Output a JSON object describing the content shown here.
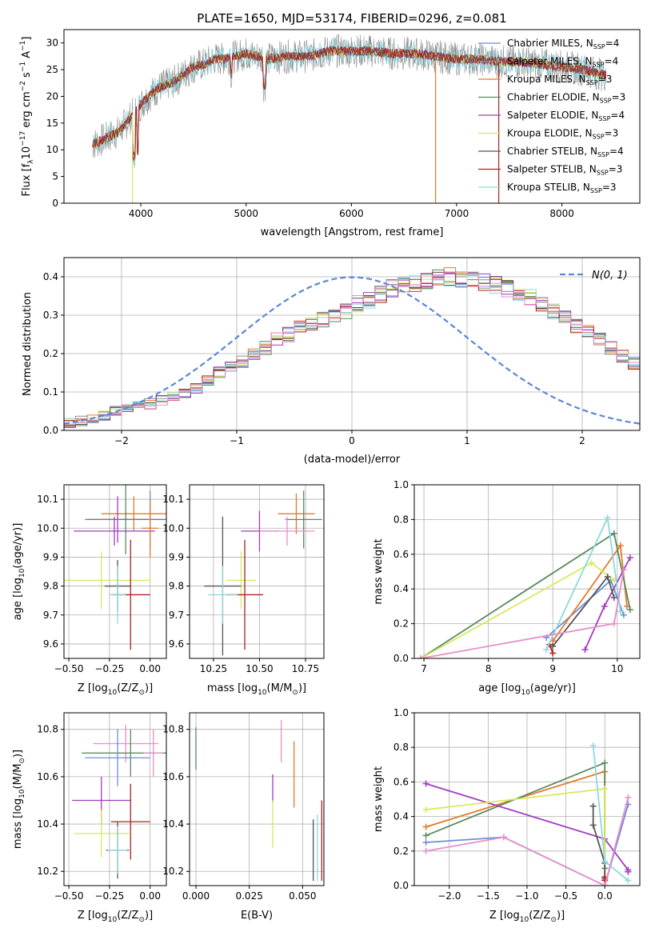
{
  "figure": {
    "title": "PLATE=1650, MJD=53174, FIBERID=0296, z=0.081"
  },
  "legend_entries": [
    {
      "name": "Chabrier MILES, N",
      "sub": "SSP",
      "tail": "=4",
      "color": "#6b8fd8"
    },
    {
      "name": "Salpeter MILES, N",
      "sub": "SSP",
      "tail": "=4",
      "color": "#8c8c8c"
    },
    {
      "name": "Kroupa MILES, N",
      "sub": "SSP",
      "tail": "=3",
      "color": "#e37a2c"
    },
    {
      "name": "Chabrier ELODIE, N",
      "sub": "SSP",
      "tail": "=3",
      "color": "#5a8a5e"
    },
    {
      "name": "Salpeter ELODIE, N",
      "sub": "SSP",
      "tail": "=4",
      "color": "#a03cc0"
    },
    {
      "name": "Kroupa ELODIE, N",
      "sub": "SSP",
      "tail": "=3",
      "color": "#d8e860"
    },
    {
      "name": "Chabrier STELIB, N",
      "sub": "SSP",
      "tail": "=4",
      "color": "#555555"
    },
    {
      "name": "Salpeter STELIB, N",
      "sub": "SSP",
      "tail": "=3",
      "color": "#b0201e"
    },
    {
      "name": "Kroupa STELIB, N",
      "sub": "SSP",
      "tail": "=3",
      "color": "#8fd8e0"
    }
  ],
  "chart_data": [
    {
      "id": "spectrum",
      "type": "line",
      "title": "PLATE=1650, MJD=53174, FIBERID=0296, z=0.081",
      "xlabel": "wavelength [Angstrom, rest frame]",
      "ylabel_main": "Flux [f",
      "ylabel_sub": "λ",
      "ylabel_rest": "10",
      "ylabel_exp": "−17",
      "ylabel_units": " erg cm",
      "ylabel_units_exp1": "−2",
      "ylabel_units2": " s",
      "ylabel_units_exp2": "−1",
      "ylabel_units3": " A",
      "ylabel_units_exp3": "−1",
      "ylabel_close": "]",
      "xlim": [
        3270,
        8740
      ],
      "ylim": [
        0,
        32.5
      ],
      "xticks": [
        4000,
        5000,
        6000,
        7000,
        8000
      ],
      "yticks": [
        0,
        5,
        10,
        15,
        20,
        25,
        30
      ],
      "grid": false,
      "legend_position": "right",
      "continuum": [
        [
          3540,
          11
        ],
        [
          3600,
          11.5
        ],
        [
          3700,
          12.5
        ],
        [
          3800,
          13.5
        ],
        [
          3900,
          16
        ],
        [
          4000,
          18.5
        ],
        [
          4100,
          20.5
        ],
        [
          4200,
          22
        ],
        [
          4300,
          22.5
        ],
        [
          4400,
          24
        ],
        [
          4500,
          25.5
        ],
        [
          4600,
          26
        ],
        [
          4700,
          27
        ],
        [
          4800,
          27
        ],
        [
          4900,
          27.5
        ],
        [
          5000,
          28
        ],
        [
          5200,
          27
        ],
        [
          5400,
          27.5
        ],
        [
          5600,
          27.5
        ],
        [
          5800,
          28.5
        ],
        [
          6000,
          28.5
        ],
        [
          6200,
          28.5
        ],
        [
          6400,
          28
        ],
        [
          6600,
          28
        ],
        [
          6800,
          27.5
        ],
        [
          7000,
          27
        ],
        [
          7200,
          27
        ],
        [
          7400,
          26.5
        ],
        [
          7600,
          26.5
        ],
        [
          7800,
          26
        ],
        [
          8000,
          25.5
        ],
        [
          8200,
          25
        ],
        [
          8400,
          24
        ]
      ],
      "drops": [
        {
          "x": 3920,
          "to": 0,
          "color": "#d8e860"
        },
        {
          "x": 6800,
          "to": 0,
          "color": "#e37a2c"
        },
        {
          "x": 7400,
          "to": 0,
          "color": "#b0201e"
        }
      ]
    },
    {
      "id": "residuals",
      "type": "histogram",
      "xlabel": "(data-model)/error",
      "ylabel": "Normed distribution",
      "xlim": [
        -2.5,
        2.5
      ],
      "ylim": [
        0,
        0.45
      ],
      "xticks": [
        -2,
        -1,
        0,
        1,
        2
      ],
      "yticks": [
        0.0,
        0.1,
        0.2,
        0.3,
        0.4
      ],
      "grid": true,
      "legend_position": "top-right",
      "reference_curve": "N(0, 1)",
      "bin_width": 0.1,
      "bin_start": -2.5,
      "values": [
        0.02,
        0.025,
        0.03,
        0.04,
        0.05,
        0.06,
        0.065,
        0.07,
        0.08,
        0.09,
        0.1,
        0.11,
        0.13,
        0.15,
        0.165,
        0.18,
        0.2,
        0.215,
        0.24,
        0.25,
        0.27,
        0.28,
        0.29,
        0.3,
        0.31,
        0.33,
        0.34,
        0.355,
        0.37,
        0.38,
        0.385,
        0.39,
        0.395,
        0.4,
        0.395,
        0.39,
        0.385,
        0.38,
        0.37,
        0.36,
        0.345,
        0.33,
        0.31,
        0.29,
        0.27,
        0.255,
        0.235,
        0.215,
        0.195,
        0.175,
        0.16,
        0.14,
        0.125,
        0.11,
        0.095,
        0.085,
        0.075,
        0.065,
        0.055,
        0.05,
        0.04,
        0.035,
        0.03,
        0.028,
        0.025,
        0.022,
        0.02,
        0.02,
        0.02,
        0.02
      ],
      "jitter": 0.03
    },
    {
      "id": "age_vs_Z",
      "type": "errorbar",
      "xlabel": "Z [log",
      "xlabel_sub": "10",
      "xlabel_rest": "(Z/Z",
      "xlabel_sun": "⊙",
      "xlabel_close": ")]",
      "ylabel": "age  [log",
      "ylabel_sub": "10",
      "ylabel_rest": "(age/yr)]",
      "xlim": [
        -0.53,
        0.1
      ],
      "ylim": [
        9.55,
        10.15
      ],
      "xticks": [
        -0.5,
        -0.25,
        0.0
      ],
      "yticks": [
        9.6,
        9.7,
        9.8,
        9.9,
        10.0,
        10.1
      ],
      "grid": true,
      "points": [
        {
          "x": -0.1,
          "xerr": 0.2,
          "y": 10.05,
          "yerr": 0.06,
          "color": "#e37a2c"
        },
        {
          "x": -0.2,
          "xerr": 0.18,
          "y": 10.03,
          "yerr": 0.08,
          "color": "#a03cc0"
        },
        {
          "x": 0.0,
          "xerr": 0.08,
          "y": 10.03,
          "yerr": 0.1,
          "color": "#6b8fd8"
        },
        {
          "x": -0.15,
          "xerr": 0.25,
          "y": 10.03,
          "yerr": 0.12,
          "color": "#5a8a5e"
        },
        {
          "x": -0.22,
          "xerr": 0.25,
          "y": 9.99,
          "yerr": 0.05,
          "color": "#a03cc0"
        },
        {
          "x": 0.0,
          "xerr": 0.05,
          "y": 10.0,
          "yerr": 0.1,
          "color": "#e37a2c"
        },
        {
          "x": -0.3,
          "xerr": 0.3,
          "y": 9.82,
          "yerr": 0.1,
          "color": "#d8e860"
        },
        {
          "x": -0.2,
          "xerr": 0.08,
          "y": 9.8,
          "yerr": 0.09,
          "color": "#555555"
        },
        {
          "x": -0.12,
          "xerr": 0.12,
          "y": 9.77,
          "yerr": 0.19,
          "color": "#b0201e"
        },
        {
          "x": -0.2,
          "xerr": 0.05,
          "y": 9.77,
          "yerr": 0.1,
          "color": "#8fd8e0"
        }
      ]
    },
    {
      "id": "age_vs_mass",
      "type": "errorbar",
      "xlabel": "mass [log",
      "xlabel_sub": "10",
      "xlabel_rest": "(M/M",
      "xlabel_sun": "⊙",
      "xlabel_close": ")]",
      "xlim": [
        10.12,
        10.85
      ],
      "ylim": [
        9.55,
        10.15
      ],
      "xticks": [
        10.25,
        10.5,
        10.75
      ],
      "yticks": [
        9.6,
        9.7,
        9.8,
        9.9,
        10.0,
        10.1
      ],
      "grid": true,
      "points": [
        {
          "x": 10.7,
          "xerr": 0.1,
          "y": 10.05,
          "yerr": 0.07,
          "color": "#e37a2c"
        },
        {
          "x": 10.74,
          "xerr": 0.1,
          "y": 10.03,
          "yerr": 0.1,
          "color": "#5a8a5e"
        },
        {
          "x": 10.5,
          "xerr": 0.1,
          "y": 9.99,
          "yerr": 0.07,
          "color": "#a03cc0"
        },
        {
          "x": 10.65,
          "xerr": 0.15,
          "y": 9.99,
          "yerr": 0.05,
          "color": "#e88ec8"
        },
        {
          "x": 10.4,
          "xerr": 0.08,
          "y": 9.82,
          "yerr": 0.1,
          "color": "#d8e860"
        },
        {
          "x": 10.3,
          "xerr": 0.1,
          "y": 9.8,
          "yerr": 0.24,
          "color": "#555555"
        },
        {
          "x": 10.42,
          "xerr": 0.1,
          "y": 9.77,
          "yerr": 0.19,
          "color": "#b0201e"
        },
        {
          "x": 10.3,
          "xerr": 0.08,
          "y": 9.77,
          "yerr": 0.1,
          "color": "#8fd8e0"
        }
      ]
    },
    {
      "id": "weight_vs_age",
      "type": "line",
      "xlabel": "age  [log",
      "xlabel_sub": "10",
      "xlabel_rest": "(age/yr)]",
      "ylabel": "mass weight",
      "xlim": [
        6.85,
        10.35
      ],
      "ylim": [
        0,
        1
      ],
      "xticks": [
        7,
        8,
        9,
        10
      ],
      "yticks": [
        0.0,
        0.2,
        0.4,
        0.6,
        0.8,
        1.0
      ],
      "grid": true,
      "series": [
        {
          "color": "#6b8fd8",
          "x": [
            8.9,
            9.9,
            10.1
          ],
          "y": [
            0.12,
            0.45,
            0.25
          ]
        },
        {
          "color": "#e37a2c",
          "x": [
            9.0,
            10.05,
            10.15
          ],
          "y": [
            0.1,
            0.65,
            0.3
          ]
        },
        {
          "color": "#5a8a5e",
          "x": [
            6.95,
            9.95,
            10.2
          ],
          "y": [
            0.0,
            0.72,
            0.28
          ]
        },
        {
          "color": "#a03cc0",
          "x": [
            9.5,
            9.8,
            10.2
          ],
          "y": [
            0.05,
            0.3,
            0.58
          ]
        },
        {
          "color": "#d8e860",
          "x": [
            6.95,
            9.6,
            9.95
          ],
          "y": [
            0.0,
            0.55,
            0.45
          ]
        },
        {
          "color": "#555555",
          "x": [
            9.0,
            9.85,
            9.95
          ],
          "y": [
            0.07,
            0.47,
            0.35
          ]
        },
        {
          "color": "#b0201e",
          "x": [
            8.95,
            9.0
          ],
          "y": [
            0.08,
            0.03
          ]
        },
        {
          "color": "#8fd8e0",
          "x": [
            8.9,
            9.85,
            10.05
          ],
          "y": [
            0.05,
            0.81,
            0.27
          ]
        },
        {
          "color": "#e88ec8",
          "x": [
            6.95,
            9.95,
            10.1
          ],
          "y": [
            0.0,
            0.2,
            0.51
          ]
        }
      ]
    },
    {
      "id": "mass_vs_Z",
      "type": "errorbar",
      "xlabel": "Z [log",
      "xlabel_sub": "10",
      "xlabel_rest": "(Z/Z",
      "xlabel_sun": "⊙",
      "xlabel_close": ")]",
      "ylabel": "mass [log",
      "ylabel_sub": "10",
      "ylabel_rest": "(M/M",
      "ylabel_sun": "⊙",
      "ylabel_close": ")]",
      "xlim": [
        -0.53,
        0.1
      ],
      "ylim": [
        10.14,
        10.87
      ],
      "xticks": [
        -0.5,
        -0.25,
        0.0
      ],
      "yticks": [
        10.2,
        10.4,
        10.6,
        10.8
      ],
      "grid": true,
      "points": [
        {
          "x": -0.15,
          "xerr": 0.2,
          "y": 10.74,
          "yerr": 0.08,
          "color": "#e88ec8"
        },
        {
          "x": -0.12,
          "xerr": 0.3,
          "y": 10.7,
          "yerr": 0.1,
          "color": "#5a8a5e"
        },
        {
          "x": 0.02,
          "xerr": 0.06,
          "y": 10.7,
          "yerr": 0.1,
          "color": "#e88ec8"
        },
        {
          "x": -0.2,
          "xerr": 0.2,
          "y": 10.68,
          "yerr": 0.12,
          "color": "#6b8fd8"
        },
        {
          "x": -0.3,
          "xerr": 0.18,
          "y": 10.5,
          "yerr": 0.1,
          "color": "#a03cc0"
        },
        {
          "x": -0.12,
          "xerr": 0.12,
          "y": 10.41,
          "yerr": 0.16,
          "color": "#b0201e"
        },
        {
          "x": -0.3,
          "xerr": 0.17,
          "y": 10.36,
          "yerr": 0.1,
          "color": "#d8e860"
        },
        {
          "x": -0.2,
          "xerr": 0.07,
          "y": 10.29,
          "yerr": 0.12,
          "color": "#555555"
        },
        {
          "x": -0.2,
          "xerr": 0.06,
          "y": 10.29,
          "yerr": 0.1,
          "color": "#8fd8e0"
        }
      ]
    },
    {
      "id": "mass_vs_EBV",
      "type": "errorbar",
      "xlabel": "E(B-V)",
      "xlim": [
        -0.003,
        0.06
      ],
      "ylim": [
        10.14,
        10.87
      ],
      "xticks": [
        0.0,
        0.025,
        0.05
      ],
      "xticklabels": [
        "0.000",
        "0.025",
        "0.050"
      ],
      "yticks": [
        10.2,
        10.4,
        10.6,
        10.8
      ],
      "grid": true,
      "points": [
        {
          "x": 0.0,
          "xerr": 0,
          "y": 10.72,
          "yerr": 0.09,
          "color": "#5a8a5e"
        },
        {
          "x": 0.04,
          "xerr": 0,
          "y": 10.75,
          "yerr": 0.09,
          "color": "#e88ec8"
        },
        {
          "x": 0.046,
          "xerr": 0,
          "y": 10.61,
          "yerr": 0.14,
          "color": "#e37a2c"
        },
        {
          "x": 0.036,
          "xerr": 0,
          "y": 10.55,
          "yerr": 0.06,
          "color": "#a03cc0"
        },
        {
          "x": 0.036,
          "xerr": 0,
          "y": 10.4,
          "yerr": 0.1,
          "color": "#d8e860"
        },
        {
          "x": 0.059,
          "xerr": 0,
          "y": 10.33,
          "yerr": 0.17,
          "color": "#b0201e"
        },
        {
          "x": 0.055,
          "xerr": 0,
          "y": 10.29,
          "yerr": 0.13,
          "color": "#555555"
        },
        {
          "x": 0.057,
          "xerr": 0,
          "y": 10.3,
          "yerr": 0.14,
          "color": "#8fd8e0"
        }
      ]
    },
    {
      "id": "weight_vs_Z",
      "type": "line",
      "xlabel": "Z [log",
      "xlabel_sub": "10",
      "xlabel_rest": "(Z/Z",
      "xlabel_sun": "⊙",
      "xlabel_close": ")]",
      "ylabel": "mass weight",
      "xlim": [
        -2.45,
        0.45
      ],
      "ylim": [
        0,
        1
      ],
      "xticks": [
        -2.0,
        -1.5,
        -1.0,
        -0.5,
        0.0
      ],
      "yticks": [
        0.0,
        0.2,
        0.4,
        0.6,
        0.8,
        1.0
      ],
      "grid": true,
      "series": [
        {
          "color": "#6b8fd8",
          "x": [
            -2.3,
            -1.3,
            0.0,
            0.3
          ],
          "y": [
            0.25,
            0.28,
            0.0,
            0.47
          ]
        },
        {
          "color": "#e37a2c",
          "x": [
            -2.3,
            0.0,
            0.0
          ],
          "y": [
            0.34,
            0.66,
            0.0
          ]
        },
        {
          "color": "#5a8a5e",
          "x": [
            -2.3,
            0.0,
            0.0
          ],
          "y": [
            0.29,
            0.71,
            0.1
          ]
        },
        {
          "color": "#a03cc0",
          "x": [
            -2.3,
            0.0,
            0.3,
            0.3
          ],
          "y": [
            0.59,
            0.27,
            0.09,
            0.08
          ]
        },
        {
          "color": "#d8e860",
          "x": [
            -2.3,
            0.0,
            0.0
          ],
          "y": [
            0.44,
            0.56,
            0.0
          ]
        },
        {
          "color": "#555555",
          "x": [
            -0.15,
            -0.15,
            0.0,
            0.0
          ],
          "y": [
            0.46,
            0.35,
            0.13,
            0.04
          ]
        },
        {
          "color": "#b0201e",
          "x": [
            0.0,
            0.0
          ],
          "y": [
            0.05,
            0.03
          ]
        },
        {
          "color": "#8fd8e0",
          "x": [
            -0.15,
            0.0,
            0.3
          ],
          "y": [
            0.81,
            0.14,
            0.03
          ]
        },
        {
          "color": "#e88ec8",
          "x": [
            -2.3,
            -1.3,
            0.0,
            0.3
          ],
          "y": [
            0.2,
            0.28,
            0.0,
            0.51
          ]
        }
      ]
    }
  ]
}
